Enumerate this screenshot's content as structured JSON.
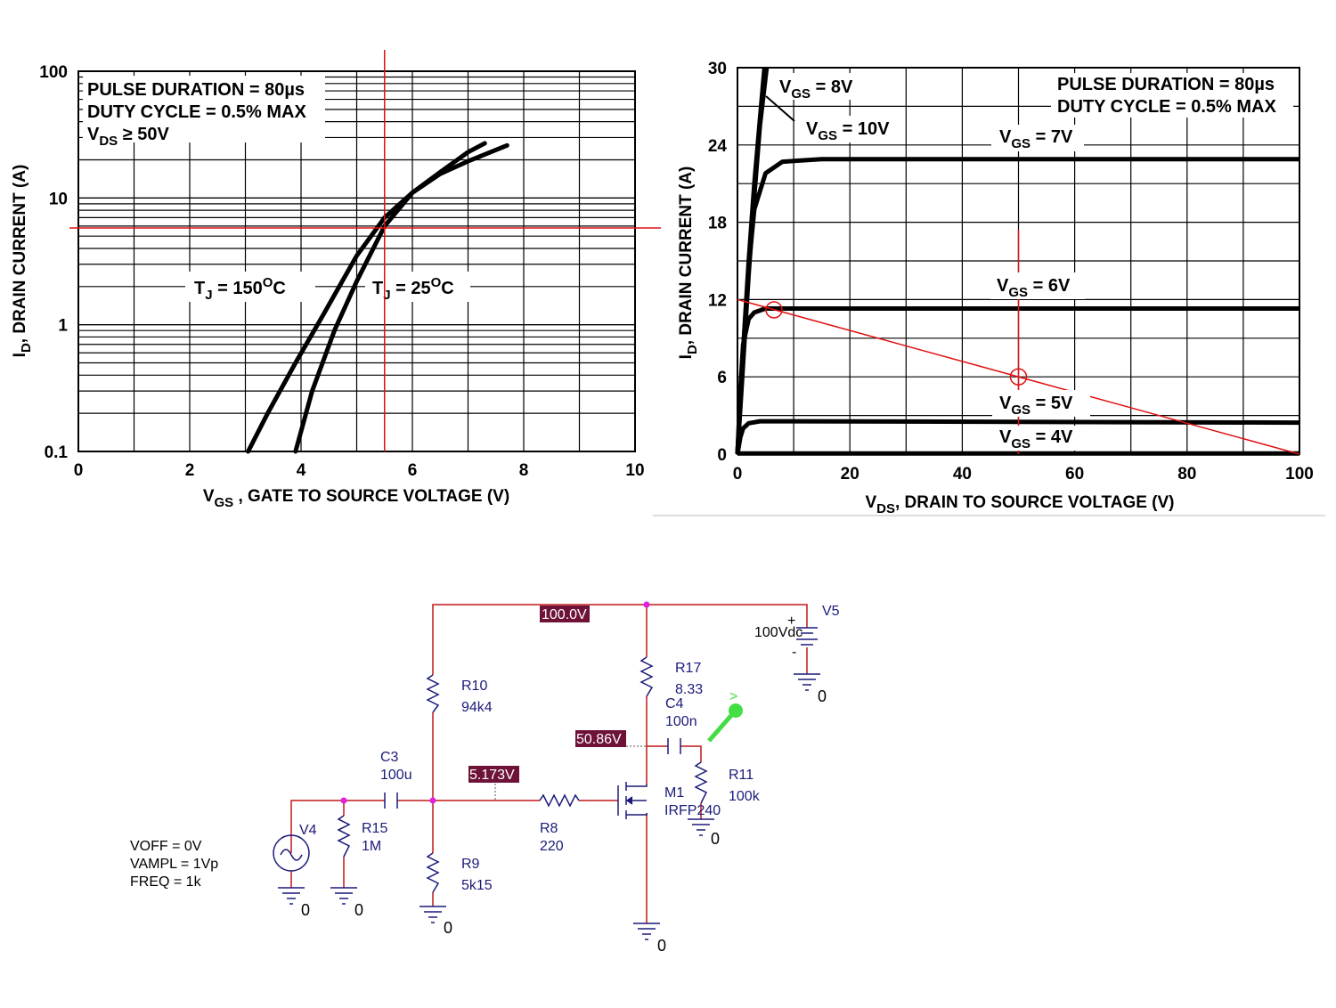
{
  "chart_data": [
    {
      "type": "line",
      "xlabel_main": "V",
      "xlabel_sub": "GS",
      "xlabel_rest": " , GATE TO SOURCE VOLTAGE (V)",
      "ylabel_main": "I",
      "ylabel_sub": "D",
      "ylabel_rest": ", DRAIN CURRENT (A)",
      "xlim": [
        0,
        10
      ],
      "ylim": [
        0.1,
        100
      ],
      "yscale": "log",
      "x_ticks": [
        "0",
        "2",
        "4",
        "6",
        "8",
        "10"
      ],
      "y_ticks": [
        "0.1",
        "1",
        "10",
        "100"
      ],
      "grid": true,
      "notes": [
        "PULSE DURATION = 80µs",
        "DUTY CYCLE = 0.5% MAX"
      ],
      "note3_main": "V",
      "note3_sub": "DS",
      "note3_rest": " ≥ 50V",
      "series": [
        {
          "label_main": "T",
          "label_sub": "J",
          "label_rest": " = 150",
          "label_sup": "O",
          "label_end": "C",
          "x": [
            3.05,
            3.4,
            3.9,
            4.4,
            5.0,
            5.5,
            6.0,
            6.5,
            7.0,
            7.3
          ],
          "y": [
            0.1,
            0.2,
            0.5,
            1.2,
            3.5,
            7.0,
            11.0,
            16.0,
            23.0,
            27.0
          ]
        },
        {
          "label_main": "T",
          "label_sub": "J",
          "label_rest": " = 25",
          "label_sup": "O",
          "label_end": "C",
          "x": [
            3.9,
            4.2,
            4.6,
            5.0,
            5.5,
            6.0,
            6.5,
            7.0,
            7.7
          ],
          "y": [
            0.1,
            0.3,
            0.9,
            2.2,
            6.0,
            11.0,
            15.5,
            19.5,
            26.0
          ]
        }
      ],
      "markers": {
        "vline_x": 5.5,
        "hline_y": 5.8
      }
    },
    {
      "type": "line",
      "xlabel_main": "V",
      "xlabel_sub": "DS",
      "xlabel_rest": ", DRAIN TO SOURCE VOLTAGE (V)",
      "ylabel_main": "I",
      "ylabel_sub": "D",
      "ylabel_rest": ", DRAIN CURRENT (A)",
      "xlim": [
        0,
        100
      ],
      "ylim": [
        0,
        30
      ],
      "x_ticks": [
        "0",
        "20",
        "40",
        "60",
        "80",
        "100"
      ],
      "y_ticks": [
        "0",
        "6",
        "12",
        "18",
        "24",
        "30"
      ],
      "grid": true,
      "notes": [
        "PULSE DURATION = 80µs",
        "DUTY CYCLE = 0.5% MAX"
      ],
      "series": [
        {
          "label_main": "V",
          "label_sub": "GS",
          "label_rest": " = 8V",
          "x": [
            0,
            1,
            2,
            3,
            4,
            4.8
          ],
          "y": [
            0,
            8,
            15,
            21,
            26,
            30
          ]
        },
        {
          "label_main": "V",
          "label_sub": "GS",
          "label_rest": " = 10V",
          "x": [
            0,
            1,
            2,
            3,
            4,
            5.2
          ],
          "y": [
            0,
            7,
            14,
            20,
            25.5,
            30
          ]
        },
        {
          "label_main": "V",
          "label_sub": "GS",
          "label_rest": " = 7V",
          "x": [
            0,
            1,
            2,
            3,
            5,
            8,
            15,
            100
          ],
          "y": [
            0,
            8,
            14.5,
            19,
            21.8,
            22.7,
            22.9,
            22.9
          ]
        },
        {
          "label_main": "V",
          "label_sub": "GS",
          "label_rest": " = 6V",
          "x": [
            0,
            0.5,
            1,
            2,
            3,
            5,
            10,
            100
          ],
          "y": [
            0,
            5,
            8.5,
            10.5,
            11.0,
            11.3,
            11.3,
            11.3
          ]
        },
        {
          "label_main": "V",
          "label_sub": "GS",
          "label_rest": " = 5V",
          "x": [
            0,
            0.5,
            1,
            2,
            4,
            10,
            100
          ],
          "y": [
            0,
            1.3,
            2.0,
            2.4,
            2.55,
            2.55,
            2.45
          ]
        },
        {
          "label_main": "V",
          "label_sub": "GS",
          "label_rest": " = 4V",
          "x": [
            0,
            100
          ],
          "y": [
            0.05,
            0.05
          ]
        }
      ],
      "load_line": {
        "x": [
          0,
          100
        ],
        "y": [
          12,
          0
        ]
      },
      "q_point": {
        "x": 50,
        "y": 6
      },
      "circle2": {
        "x": 6.5,
        "y": 11.2
      },
      "vline_x": 50
    }
  ],
  "schematic": {
    "voltages": [
      "100.0V",
      "50.86V",
      "5.173V"
    ],
    "source_v5": {
      "name": "V5",
      "value": "100Vdc"
    },
    "source_v4": {
      "name": "V4",
      "params": [
        "VOFF = 0V",
        "VAMPL = 1Vp",
        "FREQ = 1k"
      ]
    },
    "r10": {
      "name": "R10",
      "value": "94k4"
    },
    "r17": {
      "name": "R17",
      "value": "8.33"
    },
    "c4": {
      "name": "C4",
      "value": "100n"
    },
    "c3": {
      "name": "C3",
      "value": "100u"
    },
    "r15": {
      "name": "R15",
      "value": "1M"
    },
    "r9": {
      "name": "R9",
      "value": "5k15"
    },
    "r8": {
      "name": "R8",
      "value": "220"
    },
    "m1": {
      "name": "M1",
      "value": "IRFP240"
    },
    "r11": {
      "name": "R11",
      "value": "100k"
    },
    "ground": "0",
    "plus": "+",
    "minus": "-",
    "probe": ">"
  }
}
